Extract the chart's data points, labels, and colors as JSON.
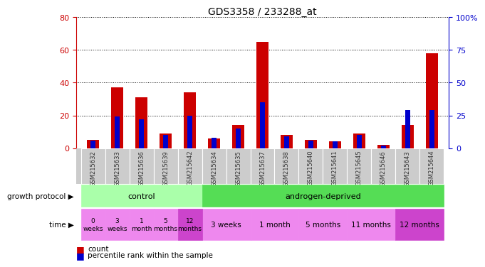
{
  "title": "GDS3358 / 233288_at",
  "samples": [
    "GSM215632",
    "GSM215633",
    "GSM215636",
    "GSM215639",
    "GSM215642",
    "GSM215634",
    "GSM215635",
    "GSM215637",
    "GSM215638",
    "GSM215640",
    "GSM215641",
    "GSM215645",
    "GSM215646",
    "GSM215643",
    "GSM215644"
  ],
  "count": [
    5,
    37,
    31,
    9,
    34,
    6,
    14,
    65,
    8,
    5,
    4,
    9,
    2,
    14,
    58
  ],
  "percentile": [
    6,
    24,
    22,
    10,
    25,
    8,
    15,
    35,
    9,
    6,
    5,
    10,
    2,
    29,
    29
  ],
  "left_ylim": [
    0,
    80
  ],
  "right_ylim": [
    0,
    100
  ],
  "left_yticks": [
    0,
    20,
    40,
    60,
    80
  ],
  "right_yticks": [
    0,
    25,
    50,
    75,
    100
  ],
  "right_yticklabels": [
    "0",
    "25",
    "50",
    "75",
    "100%"
  ],
  "left_yticklabels": [
    "0",
    "20",
    "40",
    "60",
    "80"
  ],
  "count_color": "#cc0000",
  "percentile_color": "#0000cc",
  "growth_protocol_label": "growth protocol",
  "time_label": "time",
  "protocol_groups": [
    {
      "label": "control",
      "start": 0,
      "end": 5,
      "color": "#aaffaa"
    },
    {
      "label": "androgen-deprived",
      "start": 5,
      "end": 15,
      "color": "#55dd55"
    }
  ],
  "time_groups_control": [
    {
      "label": "0\nweeks",
      "start": 0,
      "end": 1
    },
    {
      "label": "3\nweeks",
      "start": 1,
      "end": 2
    },
    {
      "label": "1\nmonth",
      "start": 2,
      "end": 3
    },
    {
      "label": "5\nmonths",
      "start": 3,
      "end": 4
    },
    {
      "label": "12\nmonths",
      "start": 4,
      "end": 5
    }
  ],
  "time_groups_androgen": [
    {
      "label": "3 weeks",
      "start": 5,
      "end": 7
    },
    {
      "label": "1 month",
      "start": 7,
      "end": 9
    },
    {
      "label": "5 months",
      "start": 9,
      "end": 11
    },
    {
      "label": "11 months",
      "start": 11,
      "end": 13
    },
    {
      "label": "12 months",
      "start": 13,
      "end": 15
    }
  ],
  "time_color_light": "#ee88ee",
  "time_color_dark": "#cc44cc",
  "legend_count_label": "count",
  "legend_percentile_label": "percentile rank within the sample",
  "bg_color": "#ffffff",
  "cell_bg": "#cccccc",
  "left_ytick_color": "#cc0000",
  "right_ytick_color": "#0000cc"
}
